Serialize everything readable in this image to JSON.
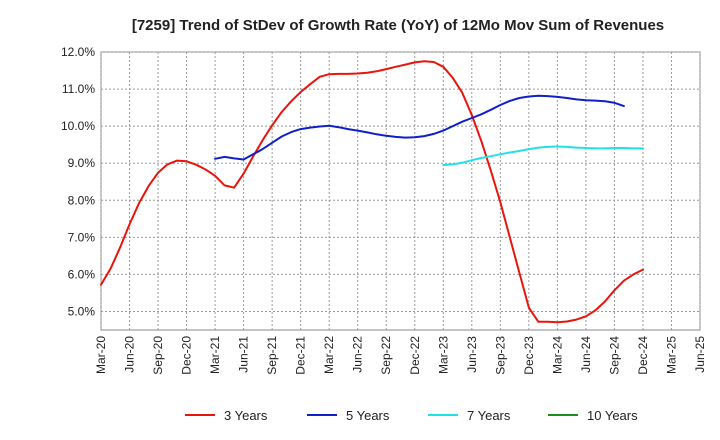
{
  "chart_data": {
    "type": "line",
    "title": "[7259]  Trend of StDev of Growth Rate (YoY) of 12Mo Mov Sum of Revenues",
    "xlabel": "",
    "ylabel": "",
    "ylim": [
      4.5,
      12.0
    ],
    "y_ticks": [
      5.0,
      6.0,
      7.0,
      8.0,
      9.0,
      10.0,
      11.0,
      12.0
    ],
    "y_tick_labels": [
      "5.0%",
      "6.0%",
      "7.0%",
      "8.0%",
      "9.0%",
      "10.0%",
      "11.0%",
      "12.0%"
    ],
    "x_tick_labels": [
      "Mar-20",
      "Jun-20",
      "Sep-20",
      "Dec-20",
      "Mar-21",
      "Jun-21",
      "Sep-21",
      "Dec-21",
      "Mar-22",
      "Jun-22",
      "Sep-22",
      "Dec-22",
      "Mar-23",
      "Jun-23",
      "Sep-23",
      "Dec-23",
      "Mar-24",
      "Jun-24",
      "Sep-24",
      "Dec-24",
      "Mar-25",
      "Jun-25"
    ],
    "grid": true,
    "legend_position": "bottom",
    "series": [
      {
        "name": "3 Years",
        "color": "#e8150d",
        "start_index": 0,
        "values": [
          5.72,
          6.15,
          6.72,
          7.35,
          7.92,
          8.38,
          8.74,
          8.97,
          9.07,
          9.05,
          8.96,
          8.83,
          8.66,
          8.4,
          8.34,
          8.72,
          9.18,
          9.62,
          10.02,
          10.38,
          10.67,
          10.92,
          11.13,
          11.33,
          11.4,
          11.41,
          11.41,
          11.42,
          11.44,
          11.48,
          11.54,
          11.6,
          11.66,
          11.72,
          11.75,
          11.73,
          11.6,
          11.3,
          10.9,
          10.3,
          9.6,
          8.8,
          7.95,
          7.0,
          6.05,
          5.1,
          4.72,
          4.72,
          4.71,
          4.73,
          4.78,
          4.87,
          5.03,
          5.27,
          5.57,
          5.83,
          6.0,
          6.13
        ]
      },
      {
        "name": "5 Years",
        "color": "#1020c8",
        "start_index": 12,
        "values": [
          9.12,
          9.17,
          9.13,
          9.1,
          9.24,
          9.38,
          9.55,
          9.72,
          9.84,
          9.92,
          9.96,
          9.99,
          10.01,
          9.97,
          9.92,
          9.88,
          9.83,
          9.78,
          9.74,
          9.71,
          9.69,
          9.7,
          9.73,
          9.79,
          9.88,
          10.0,
          10.12,
          10.22,
          10.32,
          10.44,
          10.57,
          10.68,
          10.76,
          10.8,
          10.82,
          10.81,
          10.79,
          10.76,
          10.72,
          10.7,
          10.69,
          10.67,
          10.63,
          10.54
        ]
      },
      {
        "name": "7 Years",
        "color": "#22e0e8",
        "start_index": 36,
        "values": [
          8.95,
          8.97,
          9.01,
          9.08,
          9.14,
          9.19,
          9.24,
          9.29,
          9.33,
          9.38,
          9.42,
          9.44,
          9.45,
          9.44,
          9.42,
          9.41,
          9.4,
          9.4,
          9.41,
          9.41,
          9.4,
          9.4
        ]
      },
      {
        "name": "10 Years",
        "color": "#1e8c1e",
        "start_index": 0,
        "values": []
      }
    ]
  }
}
